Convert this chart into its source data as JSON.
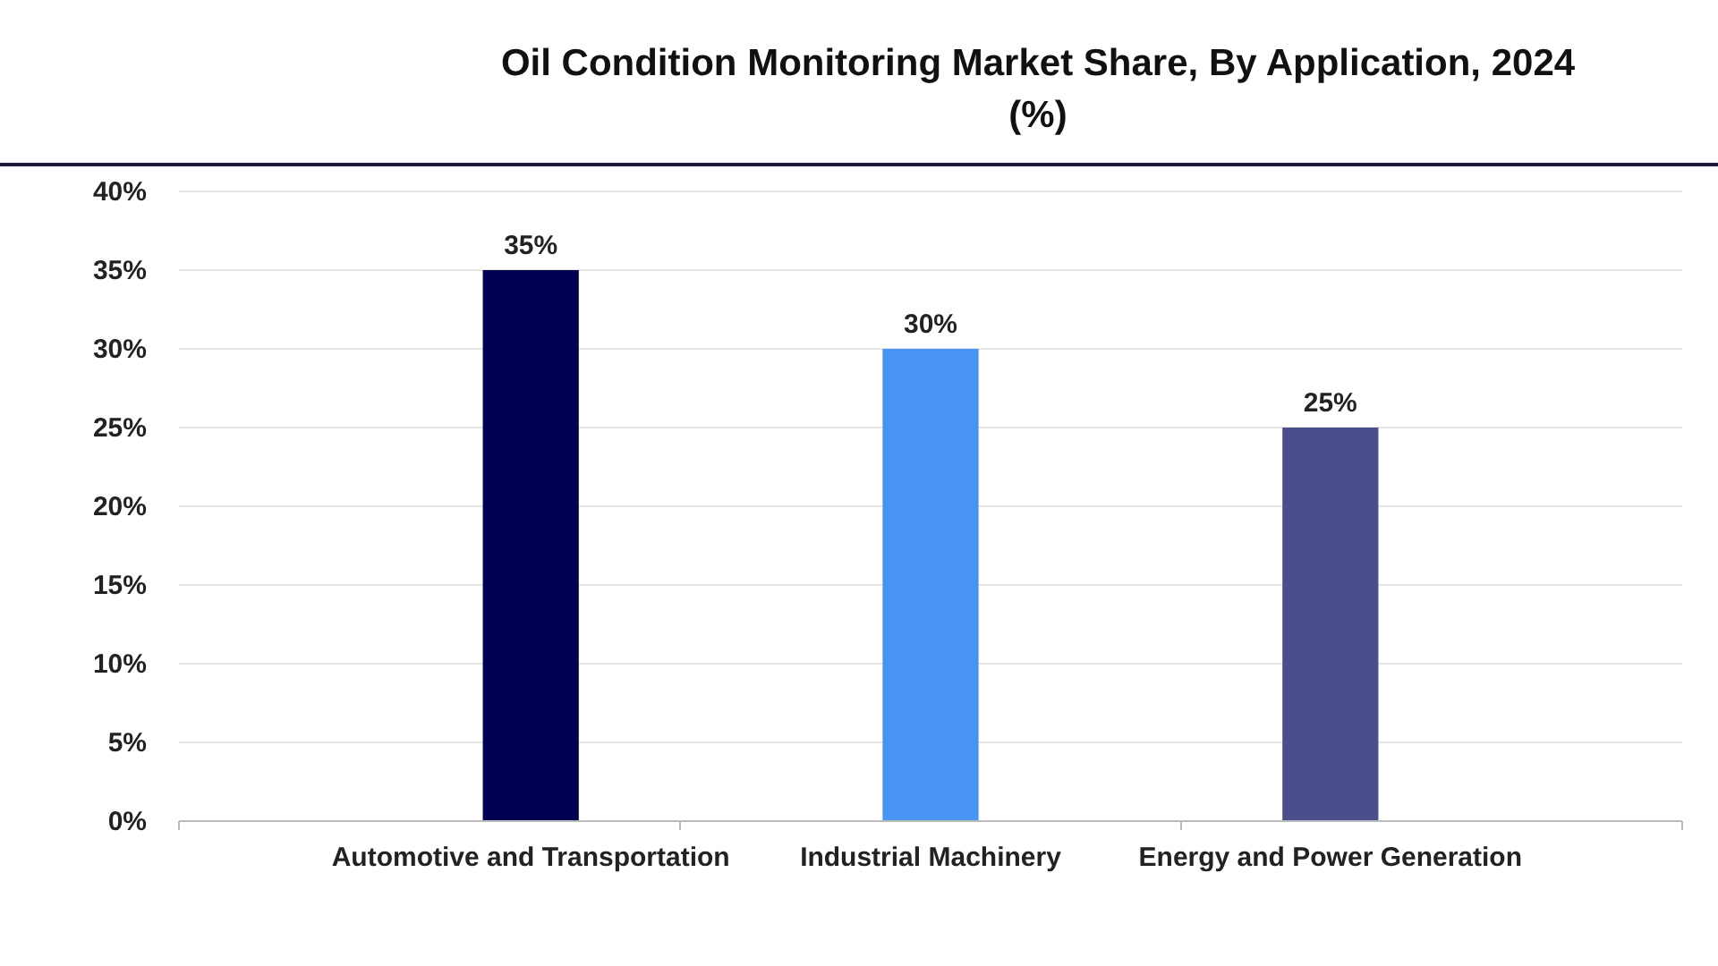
{
  "chart_data": {
    "type": "bar",
    "title": "Oil Condition Monitoring Market Share, By Application, 2024 (%)",
    "categories": [
      "Automotive and Transportation",
      "Industrial Machinery",
      "Energy and Power Generation"
    ],
    "values": [
      35,
      30,
      25
    ],
    "colors": [
      "#000050",
      "#4794f2",
      "#4a4e8a"
    ],
    "value_labels": [
      "35%",
      "30%",
      "25%"
    ],
    "ylim": [
      0,
      40
    ],
    "yticks": [
      {
        "value": 0,
        "label": "0%"
      },
      {
        "value": 5,
        "label": "5%"
      },
      {
        "value": 10,
        "label": "10%"
      },
      {
        "value": 15,
        "label": "15%"
      },
      {
        "value": 20,
        "label": "20%"
      },
      {
        "value": 25,
        "label": "25%"
      },
      {
        "value": 30,
        "label": "30%"
      },
      {
        "value": 35,
        "label": "35%"
      },
      {
        "value": 40,
        "label": "40%"
      }
    ],
    "grid": "y"
  }
}
